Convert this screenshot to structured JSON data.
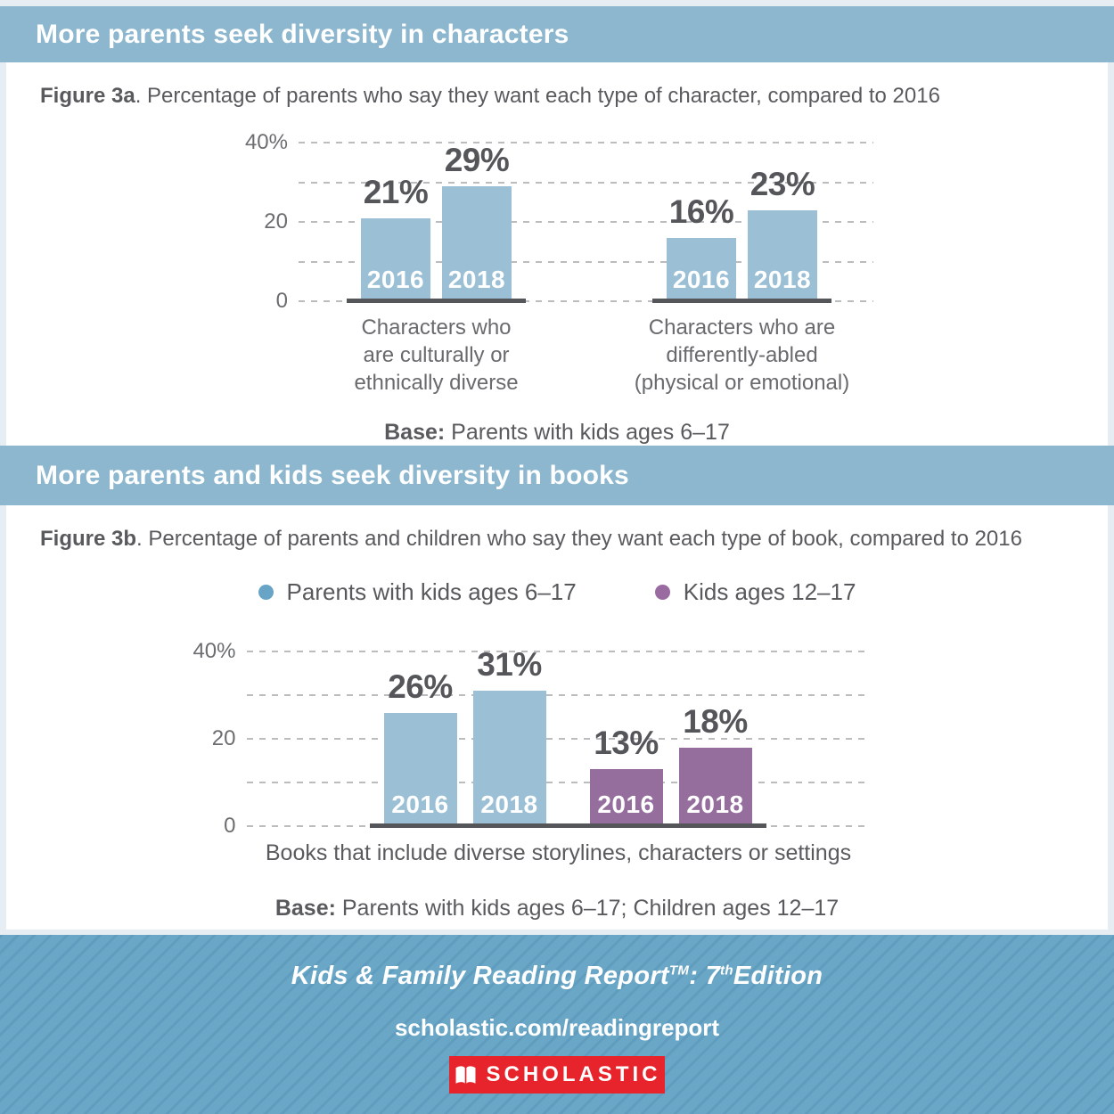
{
  "theme": {
    "band_blue": "#8cb7ce",
    "page_bg": "#e7eef3",
    "bar_blue": "#9bc0d5",
    "bar_purple": "#956e9d",
    "footer_blue": "#6aa7c7",
    "footer_stripe": "#5f9cbd",
    "scholastic_red": "#e7242b",
    "text_dark": "#54565a",
    "text_gray": "#595a5d"
  },
  "section_a": {
    "header": "More parents seek diversity in characters",
    "figure_label": "Figure 3a",
    "figure_caption": ". Percentage of parents who say they want each type of character, compared to 2016",
    "base_label": "Base:",
    "base_text": " Parents with kids ages 6–17"
  },
  "section_b": {
    "header": "More parents and kids seek diversity in books",
    "figure_label": "Figure 3b",
    "figure_caption": ". Percentage of parents and children who say they want each type of book, compared to 2016",
    "legend": [
      {
        "label": "Parents with kids ages 6–17",
        "color": "#68a4c6"
      },
      {
        "label": "Kids ages 12–17",
        "color": "#9a6ba1"
      }
    ],
    "base_label": "Base:",
    "base_text": " Parents with kids ages 6–17; Children ages 12–17"
  },
  "footer": {
    "title_main": "Kids & Family Reading Report",
    "title_tm": "TM",
    "title_sep": ": ",
    "title_num": "7",
    "title_ord": "th",
    "title_word": "Edition",
    "url": "scholastic.com/readingreport",
    "logo_text": "SCHOLASTIC"
  },
  "chart_data": [
    {
      "type": "bar",
      "figure": "Figure 3a",
      "title": "Percentage of parents who say they want each type of character, compared to 2016",
      "ylim": [
        0,
        40
      ],
      "gridline_step": 10,
      "grid": true,
      "yticks": [
        {
          "value": 40,
          "label": "40%"
        },
        {
          "value": 20,
          "label": "20"
        },
        {
          "value": 0,
          "label": "0"
        }
      ],
      "categories": [
        "Characters who are culturally or ethnically diverse",
        "Characters who are differently-abled (physical or emotional)"
      ],
      "groups": [
        {
          "category_lines": [
            "Characters who",
            "are culturally or",
            "ethnically diverse"
          ],
          "bars": [
            {
              "year": "2016",
              "value": 21,
              "label": "21%",
              "color": "#9bc0d5"
            },
            {
              "year": "2018",
              "value": 29,
              "label": "29%",
              "color": "#9bc0d5"
            }
          ]
        },
        {
          "category_lines": [
            "Characters who are",
            "differently-abled",
            "(physical or emotional)"
          ],
          "bars": [
            {
              "year": "2016",
              "value": 16,
              "label": "16%",
              "color": "#9bc0d5"
            },
            {
              "year": "2018",
              "value": 23,
              "label": "23%",
              "color": "#9bc0d5"
            }
          ]
        }
      ]
    },
    {
      "type": "bar",
      "figure": "Figure 3b",
      "title": "Percentage of parents and children who say they want each type of book, compared to 2016",
      "ylim": [
        0,
        40
      ],
      "gridline_step": 10,
      "grid": true,
      "yticks": [
        {
          "value": 40,
          "label": "40%"
        },
        {
          "value": 20,
          "label": "20"
        },
        {
          "value": 0,
          "label": "0"
        }
      ],
      "xlabel": "Books that include diverse storylines, characters or settings",
      "legend_position": "top",
      "groups": [
        {
          "series": "Parents with kids ages 6–17",
          "bars": [
            {
              "year": "2016",
              "value": 26,
              "label": "26%",
              "color": "#9bc0d5"
            },
            {
              "year": "2018",
              "value": 31,
              "label": "31%",
              "color": "#9bc0d5"
            }
          ]
        },
        {
          "series": "Kids ages 12–17",
          "bars": [
            {
              "year": "2016",
              "value": 13,
              "label": "13%",
              "color": "#956e9d"
            },
            {
              "year": "2018",
              "value": 18,
              "label": "18%",
              "color": "#956e9d"
            }
          ]
        }
      ]
    }
  ]
}
